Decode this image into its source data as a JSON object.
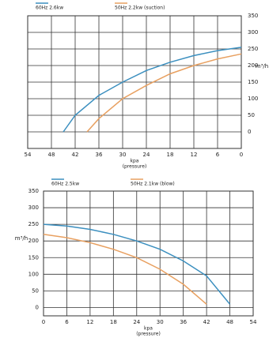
{
  "chart_data": [
    {
      "type": "line",
      "xlim": [
        54,
        0
      ],
      "xticks": [
        54,
        48,
        42,
        36,
        30,
        24,
        18,
        12,
        6,
        0
      ],
      "ylim": [
        -50,
        350
      ],
      "yticks": [
        0,
        50,
        100,
        150,
        200,
        250,
        300,
        350
      ],
      "xlabel": [
        "kpa",
        "(pressure)"
      ],
      "ylabel": "m³/h",
      "yaxis_side": "right",
      "grid": true,
      "series": [
        {
          "name": "60Hz 2.6kw",
          "color": "#3b8fbf",
          "x": [
            45,
            42,
            36,
            30,
            24,
            18,
            12,
            6,
            0
          ],
          "values": [
            0,
            50,
            110,
            150,
            185,
            210,
            230,
            245,
            255
          ]
        },
        {
          "name": "50Hz 2.2kw (suction)",
          "color": "#e8a060",
          "x": [
            39,
            36,
            30,
            24,
            18,
            12,
            6,
            0
          ],
          "values": [
            0,
            40,
            100,
            140,
            175,
            200,
            220,
            235
          ]
        }
      ]
    },
    {
      "type": "line",
      "xlim": [
        0,
        54
      ],
      "xticks": [
        0,
        6,
        12,
        18,
        24,
        30,
        36,
        42,
        48,
        54
      ],
      "ylim": [
        -25,
        350
      ],
      "yticks": [
        0,
        50,
        100,
        150,
        200,
        250,
        300,
        350
      ],
      "xlabel": [
        "kpa",
        "(pressure)"
      ],
      "ylabel": "m³/h",
      "yaxis_side": "left",
      "grid": true,
      "series": [
        {
          "name": "60Hz 2.5kw",
          "color": "#3b8fbf",
          "x": [
            0,
            6,
            12,
            18,
            24,
            30,
            36,
            42,
            48
          ],
          "values": [
            250,
            245,
            235,
            220,
            200,
            175,
            140,
            95,
            10
          ]
        },
        {
          "name": "50Hz 2.1kw (blow)",
          "color": "#e8a060",
          "x": [
            0,
            6,
            12,
            18,
            24,
            30,
            36,
            42
          ],
          "values": [
            220,
            210,
            195,
            175,
            150,
            115,
            70,
            10
          ]
        }
      ]
    }
  ]
}
